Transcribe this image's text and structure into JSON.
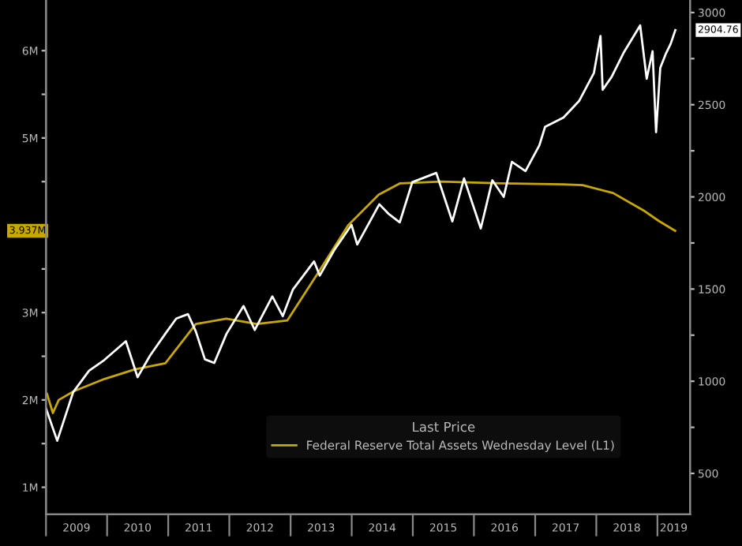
{
  "chart_data": {
    "type": "line",
    "legend_title": "Last Price",
    "legend": "bottom right",
    "grid": false,
    "xlim": [
      "2009-01-01",
      "2019-07-15"
    ],
    "xticks": [
      {
        "value": "2009-01-01",
        "label": null
      },
      {
        "value": "2009-07-02",
        "label": "2009"
      },
      {
        "value": "2010-01-01",
        "label": null
      },
      {
        "value": "2010-07-02",
        "label": "2010"
      },
      {
        "value": "2011-01-01",
        "label": null
      },
      {
        "value": "2011-07-02",
        "label": "2011"
      },
      {
        "value": "2012-01-01",
        "label": null
      },
      {
        "value": "2012-07-02",
        "label": "2012"
      },
      {
        "value": "2013-01-01",
        "label": null
      },
      {
        "value": "2013-07-02",
        "label": "2013"
      },
      {
        "value": "2014-01-01",
        "label": null
      },
      {
        "value": "2014-07-02",
        "label": "2014"
      },
      {
        "value": "2015-01-01",
        "label": null
      },
      {
        "value": "2015-07-02",
        "label": "2015"
      },
      {
        "value": "2016-01-01",
        "label": null
      },
      {
        "value": "2016-07-02",
        "label": "2016"
      },
      {
        "value": "2017-01-01",
        "label": null
      },
      {
        "value": "2017-07-02",
        "label": "2017"
      },
      {
        "value": "2018-01-01",
        "label": null
      },
      {
        "value": "2018-07-02",
        "label": "2018"
      },
      {
        "value": "2019-01-01",
        "label": null
      },
      {
        "value": "2019-04-08",
        "label": "2019"
      }
    ],
    "ylim": [
      0.69,
      6.58
    ],
    "yticks": [
      {
        "value": 1,
        "label": "1M"
      },
      {
        "value": 1.5,
        "label": null
      },
      {
        "value": 2,
        "label": "2M"
      },
      {
        "value": 2.5,
        "label": null
      },
      {
        "value": 3,
        "label": "3M"
      },
      {
        "value": 3.5,
        "label": null
      },
      {
        "value": 4,
        "label": null
      },
      {
        "value": 4.5,
        "label": null
      },
      {
        "value": 5,
        "label": "5M"
      },
      {
        "value": 5.5,
        "label": null
      },
      {
        "value": 6,
        "label": "6M"
      }
    ],
    "y2lim": [
      278,
      3068
    ],
    "y2ticks": [
      500,
      {
        "value": 750,
        "label": null
      },
      1000,
      {
        "value": 1250,
        "label": null
      },
      1500,
      {
        "value": 1750,
        "label": null
      },
      2000,
      {
        "value": 2250,
        "label": null
      },
      2500,
      {
        "value": 2750,
        "label": null
      },
      3000
    ],
    "series": [
      {
        "name": "Federal Reserve Total Assets Wednesday Level (L1)",
        "color": "#c8a800",
        "axis": "y",
        "x": [
          "2009-01-07",
          "2009-02-11",
          "2009-03-18",
          "2009-06-17",
          "2009-12-16",
          "2010-06-16",
          "2010-12-15",
          "2011-06-15",
          "2011-12-14",
          "2012-06-13",
          "2012-12-12",
          "2013-06-12",
          "2013-12-11",
          "2014-06-11",
          "2014-10-15",
          "2015-06-17",
          "2016-06-15",
          "2017-06-14",
          "2017-10-11",
          "2018-04-11",
          "2018-10-10",
          "2019-01-09",
          "2019-04-17"
        ],
        "values": [
          2.07,
          1.85,
          2.0,
          2.1,
          2.24,
          2.35,
          2.42,
          2.87,
          2.93,
          2.87,
          2.91,
          3.45,
          4.0,
          4.35,
          4.48,
          4.5,
          4.48,
          4.47,
          4.46,
          4.37,
          4.17,
          4.05,
          3.937
        ]
      },
      {
        "color": "#ffffff",
        "axis": "y2",
        "x": [
          "2009-01-02",
          "2009-03-09",
          "2009-06-12",
          "2009-09-15",
          "2009-12-15",
          "2010-04-23",
          "2010-07-02",
          "2010-09-15",
          "2010-12-15",
          "2011-02-18",
          "2011-04-29",
          "2011-06-15",
          "2011-08-08",
          "2011-10-03",
          "2011-12-15",
          "2012-03-26",
          "2012-06-01",
          "2012-09-14",
          "2012-11-15",
          "2013-01-15",
          "2013-05-21",
          "2013-06-24",
          "2013-09-18",
          "2013-12-31",
          "2014-02-03",
          "2014-06-15",
          "2014-08-07",
          "2014-10-15",
          "2014-12-29",
          "2015-05-21",
          "2015-08-25",
          "2015-11-03",
          "2016-02-11",
          "2016-04-20",
          "2016-06-27",
          "2016-08-15",
          "2016-11-04",
          "2017-01-26",
          "2017-03-01",
          "2017-06-19",
          "2017-09-20",
          "2017-12-18",
          "2018-01-26",
          "2018-02-08",
          "2018-04-02",
          "2018-06-12",
          "2018-09-20",
          "2018-10-29",
          "2018-12-03",
          "2018-12-24",
          "2019-01-18",
          "2019-02-22",
          "2019-03-21",
          "2019-04-18"
        ],
        "values": [
          850,
          677,
          940,
          1057,
          1115,
          1217,
          1022,
          1140,
          1258,
          1340,
          1364,
          1270,
          1119,
          1099,
          1257,
          1408,
          1278,
          1460,
          1353,
          1498,
          1650,
          1573,
          1710,
          1848,
          1742,
          1960,
          1910,
          1862,
          2080,
          2130,
          1867,
          2100,
          1829,
          2090,
          2000,
          2190,
          2140,
          2280,
          2380,
          2430,
          2520,
          2673,
          2873,
          2581,
          2650,
          2780,
          2930,
          2641,
          2790,
          2351,
          2700,
          2780,
          2830,
          2904.76
        ]
      }
    ],
    "annotations": [
      "3.937M",
      "2904.76"
    ]
  }
}
